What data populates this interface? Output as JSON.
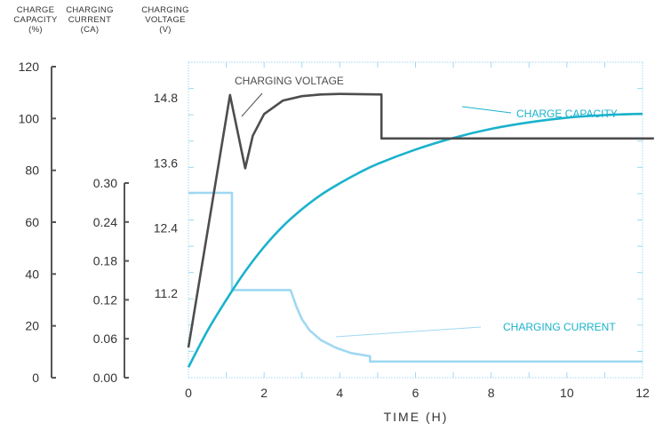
{
  "chart_data": {
    "type": "line",
    "title": "",
    "xlabel": "TIME (H)",
    "x_ticks": [
      "0",
      "2",
      "4",
      "6",
      "8",
      "10",
      "12"
    ],
    "xlim": [
      0,
      12
    ],
    "axes": {
      "capacity": {
        "label_lines": [
          "CHARGE",
          "CAPACITY",
          "(%)"
        ],
        "ticks": [
          "0",
          "20",
          "40",
          "60",
          "80",
          "100",
          "120"
        ],
        "ylim": [
          0,
          120
        ]
      },
      "current": {
        "label_lines": [
          "CHARGING",
          "CURRENT",
          "(CA)"
        ],
        "ticks": [
          "0.00",
          "0.06",
          "0.12",
          "0.18",
          "0.24",
          "0.30"
        ],
        "ylim": [
          0,
          0.3
        ]
      },
      "voltage": {
        "label_lines": [
          "CHARGING",
          "VOLTAGE",
          "(V)"
        ],
        "ticks": [
          "11.2",
          "12.4",
          "13.6",
          "14.8"
        ],
        "ylim": [
          10.0,
          15.6
        ]
      }
    },
    "series": [
      {
        "name": "CHARGING VOLTAGE",
        "axis": "voltage",
        "color": "#4d4d4d",
        "points": [
          [
            0,
            10.2
          ],
          [
            1.1,
            14.85
          ],
          [
            1.5,
            13.5
          ],
          [
            1.7,
            14.1
          ],
          [
            2.0,
            14.5
          ],
          [
            2.5,
            14.75
          ],
          [
            3.0,
            14.83
          ],
          [
            3.5,
            14.86
          ],
          [
            4.0,
            14.87
          ],
          [
            5.1,
            14.86
          ],
          [
            5.1,
            14.05
          ],
          [
            12.3,
            14.05
          ]
        ]
      },
      {
        "name": "CHARGE CAPACITY",
        "axis": "capacity",
        "color": "#1ab2cc",
        "points": [
          [
            0,
            4
          ],
          [
            0.5,
            18
          ],
          [
            1,
            30
          ],
          [
            1.5,
            41
          ],
          [
            2,
            50.5
          ],
          [
            2.5,
            58.5
          ],
          [
            3,
            65
          ],
          [
            3.5,
            70.5
          ],
          [
            4,
            75
          ],
          [
            4.5,
            79
          ],
          [
            5,
            82.5
          ],
          [
            6,
            88
          ],
          [
            7,
            92.5
          ],
          [
            8,
            96
          ],
          [
            9,
            98.5
          ],
          [
            10,
            100.3
          ],
          [
            11,
            101.3
          ],
          [
            12,
            101.8
          ]
        ]
      },
      {
        "name": "CHARGING CURRENT",
        "axis": "current",
        "color": "#9fd8f2",
        "points": [
          [
            0,
            0.285
          ],
          [
            1.15,
            0.285
          ],
          [
            1.15,
            0.135
          ],
          [
            2.7,
            0.135
          ],
          [
            2.85,
            0.11
          ],
          [
            3.0,
            0.09
          ],
          [
            3.2,
            0.073
          ],
          [
            3.5,
            0.058
          ],
          [
            3.9,
            0.046
          ],
          [
            4.3,
            0.038
          ],
          [
            4.8,
            0.033
          ],
          [
            4.8,
            0.025
          ],
          [
            12,
            0.025
          ]
        ]
      }
    ],
    "annotations": [
      {
        "text": "CHARGING VOLTAGE",
        "color": "#4d4d4d"
      },
      {
        "text": "CHARGE CAPACITY",
        "color": "#1ab2cc"
      },
      {
        "text": "CHARGING CURRENT",
        "color": "#1ab2cc"
      }
    ],
    "grid": false
  }
}
